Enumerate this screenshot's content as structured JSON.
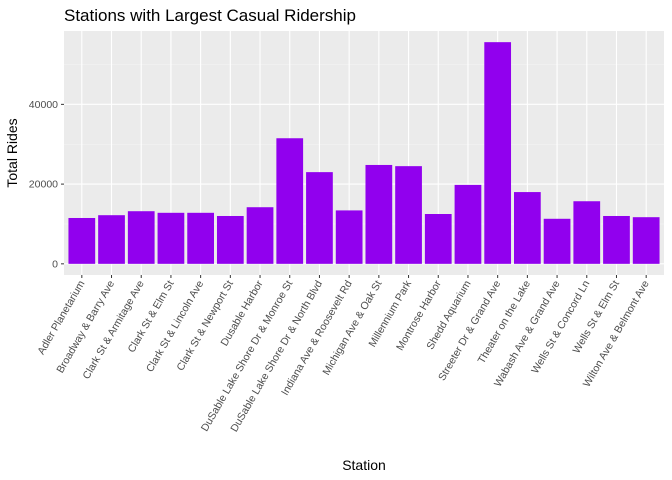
{
  "chart_data": {
    "type": "bar",
    "title": "Stations with Largest Casual Ridership",
    "xlabel": "Station",
    "ylabel": "Total Rides",
    "categories": [
      "Adler Planetarium",
      "Broadway & Barry Ave",
      "Clark St & Armitage Ave",
      "Clark St & Elm St",
      "Clark St & Lincoln Ave",
      "Clark St & Newport St",
      "Dusable Harbor",
      "DuSable Lake Shore Dr & Monroe St",
      "DuSable Lake Shore Dr & North Blvd",
      "Indiana Ave & Roosevelt Rd",
      "Michigan Ave & Oak St",
      "Millennium Park",
      "Montrose Harbor",
      "Shedd Aquarium",
      "Streeter Dr & Grand Ave",
      "Theater on the Lake",
      "Wabash Ave & Grand Ave",
      "Wells St & Concord Ln",
      "Wells St & Elm St",
      "Wilton Ave & Belmont Ave"
    ],
    "values": [
      11500,
      12200,
      13200,
      12800,
      12800,
      12000,
      14200,
      31500,
      23000,
      13400,
      24800,
      24500,
      12500,
      19800,
      55600,
      18000,
      11300,
      15700,
      12000,
      11700
    ],
    "ylim": [
      -2800,
      58400
    ],
    "yticks": [
      0,
      20000,
      40000
    ],
    "ytick_labels": [
      "0",
      "20000",
      "40000"
    ],
    "yticks_minor": [
      10000,
      30000,
      50000
    ],
    "grid": true,
    "legend": "none",
    "bar_color": "#9100ee",
    "panel_color": "#ebebeb"
  }
}
